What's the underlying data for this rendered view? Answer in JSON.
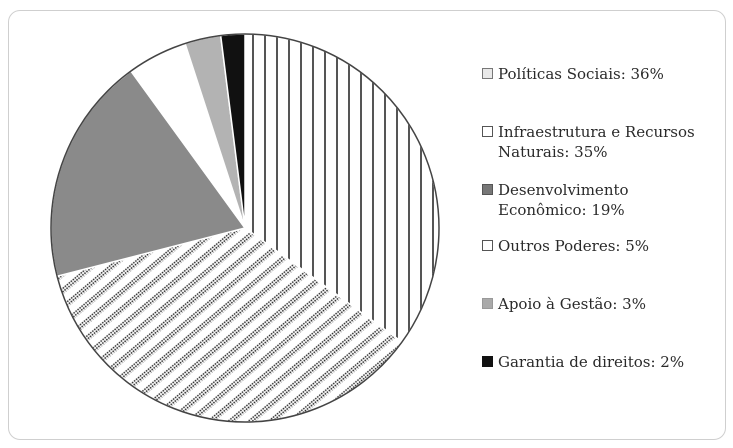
{
  "chart_data": {
    "type": "pie",
    "title": "",
    "start_angle_deg": 0,
    "direction": "clockwise",
    "slices": [
      {
        "label": "Políticas Sociais: 36%",
        "value": 36,
        "pattern": "dots",
        "color": "#ffffff"
      },
      {
        "label": "Infraestrutura e Recursos\nNaturais: 35%",
        "value": 35,
        "pattern": "vertical-lines",
        "color": "#ffffff"
      },
      {
        "label": "Desenvolvimento\nEconômico: 19%",
        "value": 19,
        "pattern": "solid",
        "color": "#8a8a8a"
      },
      {
        "label": "Outros Poderes: 5%",
        "value": 5,
        "pattern": "solid",
        "color": "#ffffff"
      },
      {
        "label": "Apoio à Gestão: 3%",
        "value": 3,
        "pattern": "solid",
        "color": "#b3b3b3"
      },
      {
        "label": "Garantia de direitos: 2%",
        "value": 2,
        "pattern": "solid",
        "color": "#111111"
      }
    ],
    "legend_order": [
      0,
      1,
      2,
      3,
      4,
      5
    ],
    "legend_placement": "right"
  }
}
